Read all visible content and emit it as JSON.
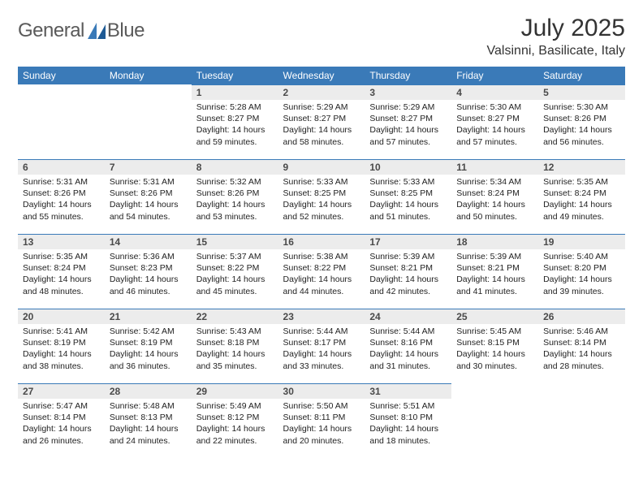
{
  "logo": {
    "word1": "General",
    "word2": "Blue"
  },
  "title": "July 2025",
  "location": "Valsinni, Basilicate, Italy",
  "colors": {
    "header_bg": "#3a7ab8",
    "header_text": "#ffffff",
    "daynum_bg": "#ececec",
    "daynum_border": "#3a7ab8",
    "page_bg": "#ffffff"
  },
  "weekdays": [
    "Sunday",
    "Monday",
    "Tuesday",
    "Wednesday",
    "Thursday",
    "Friday",
    "Saturday"
  ],
  "first_weekday_index": 2,
  "days": [
    {
      "n": 1,
      "sunrise": "5:28 AM",
      "sunset": "8:27 PM",
      "daylight": "14 hours and 59 minutes."
    },
    {
      "n": 2,
      "sunrise": "5:29 AM",
      "sunset": "8:27 PM",
      "daylight": "14 hours and 58 minutes."
    },
    {
      "n": 3,
      "sunrise": "5:29 AM",
      "sunset": "8:27 PM",
      "daylight": "14 hours and 57 minutes."
    },
    {
      "n": 4,
      "sunrise": "5:30 AM",
      "sunset": "8:27 PM",
      "daylight": "14 hours and 57 minutes."
    },
    {
      "n": 5,
      "sunrise": "5:30 AM",
      "sunset": "8:26 PM",
      "daylight": "14 hours and 56 minutes."
    },
    {
      "n": 6,
      "sunrise": "5:31 AM",
      "sunset": "8:26 PM",
      "daylight": "14 hours and 55 minutes."
    },
    {
      "n": 7,
      "sunrise": "5:31 AM",
      "sunset": "8:26 PM",
      "daylight": "14 hours and 54 minutes."
    },
    {
      "n": 8,
      "sunrise": "5:32 AM",
      "sunset": "8:26 PM",
      "daylight": "14 hours and 53 minutes."
    },
    {
      "n": 9,
      "sunrise": "5:33 AM",
      "sunset": "8:25 PM",
      "daylight": "14 hours and 52 minutes."
    },
    {
      "n": 10,
      "sunrise": "5:33 AM",
      "sunset": "8:25 PM",
      "daylight": "14 hours and 51 minutes."
    },
    {
      "n": 11,
      "sunrise": "5:34 AM",
      "sunset": "8:24 PM",
      "daylight": "14 hours and 50 minutes."
    },
    {
      "n": 12,
      "sunrise": "5:35 AM",
      "sunset": "8:24 PM",
      "daylight": "14 hours and 49 minutes."
    },
    {
      "n": 13,
      "sunrise": "5:35 AM",
      "sunset": "8:24 PM",
      "daylight": "14 hours and 48 minutes."
    },
    {
      "n": 14,
      "sunrise": "5:36 AM",
      "sunset": "8:23 PM",
      "daylight": "14 hours and 46 minutes."
    },
    {
      "n": 15,
      "sunrise": "5:37 AM",
      "sunset": "8:22 PM",
      "daylight": "14 hours and 45 minutes."
    },
    {
      "n": 16,
      "sunrise": "5:38 AM",
      "sunset": "8:22 PM",
      "daylight": "14 hours and 44 minutes."
    },
    {
      "n": 17,
      "sunrise": "5:39 AM",
      "sunset": "8:21 PM",
      "daylight": "14 hours and 42 minutes."
    },
    {
      "n": 18,
      "sunrise": "5:39 AM",
      "sunset": "8:21 PM",
      "daylight": "14 hours and 41 minutes."
    },
    {
      "n": 19,
      "sunrise": "5:40 AM",
      "sunset": "8:20 PM",
      "daylight": "14 hours and 39 minutes."
    },
    {
      "n": 20,
      "sunrise": "5:41 AM",
      "sunset": "8:19 PM",
      "daylight": "14 hours and 38 minutes."
    },
    {
      "n": 21,
      "sunrise": "5:42 AM",
      "sunset": "8:19 PM",
      "daylight": "14 hours and 36 minutes."
    },
    {
      "n": 22,
      "sunrise": "5:43 AM",
      "sunset": "8:18 PM",
      "daylight": "14 hours and 35 minutes."
    },
    {
      "n": 23,
      "sunrise": "5:44 AM",
      "sunset": "8:17 PM",
      "daylight": "14 hours and 33 minutes."
    },
    {
      "n": 24,
      "sunrise": "5:44 AM",
      "sunset": "8:16 PM",
      "daylight": "14 hours and 31 minutes."
    },
    {
      "n": 25,
      "sunrise": "5:45 AM",
      "sunset": "8:15 PM",
      "daylight": "14 hours and 30 minutes."
    },
    {
      "n": 26,
      "sunrise": "5:46 AM",
      "sunset": "8:14 PM",
      "daylight": "14 hours and 28 minutes."
    },
    {
      "n": 27,
      "sunrise": "5:47 AM",
      "sunset": "8:14 PM",
      "daylight": "14 hours and 26 minutes."
    },
    {
      "n": 28,
      "sunrise": "5:48 AM",
      "sunset": "8:13 PM",
      "daylight": "14 hours and 24 minutes."
    },
    {
      "n": 29,
      "sunrise": "5:49 AM",
      "sunset": "8:12 PM",
      "daylight": "14 hours and 22 minutes."
    },
    {
      "n": 30,
      "sunrise": "5:50 AM",
      "sunset": "8:11 PM",
      "daylight": "14 hours and 20 minutes."
    },
    {
      "n": 31,
      "sunrise": "5:51 AM",
      "sunset": "8:10 PM",
      "daylight": "14 hours and 18 minutes."
    }
  ],
  "labels": {
    "sunrise": "Sunrise:",
    "sunset": "Sunset:",
    "daylight": "Daylight:"
  },
  "fonts": {
    "title_size": 30,
    "location_size": 16,
    "header_size": 12,
    "daynum_size": 12,
    "body_size": 10.5
  }
}
